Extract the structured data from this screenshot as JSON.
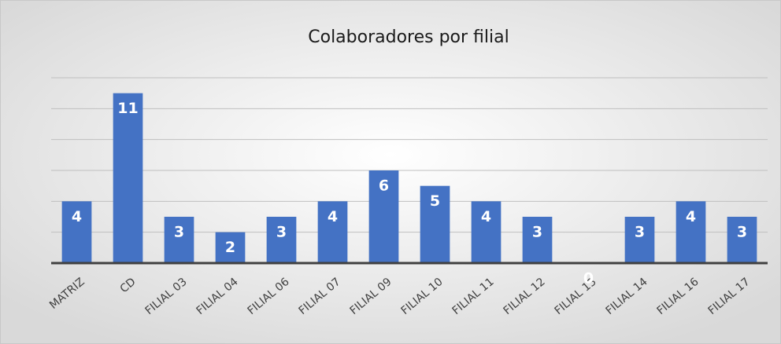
{
  "chart_data": {
    "type": "bar",
    "title": "Colaboradores por filial",
    "categories": [
      "MATRIZ",
      "CD",
      "FILIAL 03",
      "FILIAL 04",
      "FILIAL 06",
      "FILIAL 07",
      "FILIAL 09",
      "FILIAL 10",
      "FILIAL 11",
      "FILIAL 12",
      "FILIAL 13",
      "FILIAL 14",
      "FILIAL 16",
      "FILIAL 17"
    ],
    "values": [
      4,
      11,
      3,
      2,
      3,
      4,
      6,
      5,
      4,
      3,
      0,
      3,
      4,
      3
    ],
    "color": "#4472c4",
    "ylim": [
      0,
      12
    ],
    "yticks": [
      0,
      2,
      4,
      6,
      8,
      10,
      12
    ],
    "grid": true
  }
}
